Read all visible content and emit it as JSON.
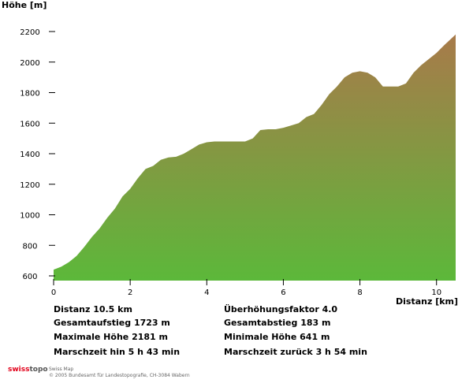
{
  "chart_data": {
    "type": "area",
    "ylabel": "Höhe [m]",
    "xlabel": "Distanz [km]",
    "xlim": [
      0,
      10.5
    ],
    "ylim": [
      600,
      2200
    ],
    "xticks": [
      0,
      2,
      4,
      6,
      8,
      10
    ],
    "yticks": [
      600,
      800,
      1000,
      1200,
      1400,
      1600,
      1800,
      2000,
      2200
    ],
    "fill_top_color": "#a87a4a",
    "fill_bottom_color": "#5cb83a",
    "x": [
      0,
      0.2,
      0.4,
      0.6,
      0.8,
      1.0,
      1.2,
      1.4,
      1.6,
      1.8,
      2.0,
      2.2,
      2.4,
      2.6,
      2.8,
      3.0,
      3.2,
      3.4,
      3.6,
      3.8,
      4.0,
      4.2,
      4.4,
      4.6,
      4.8,
      5.0,
      5.2,
      5.4,
      5.6,
      5.8,
      6.0,
      6.2,
      6.4,
      6.6,
      6.8,
      7.0,
      7.2,
      7.4,
      7.6,
      7.8,
      8.0,
      8.2,
      8.4,
      8.6,
      8.8,
      9.0,
      9.2,
      9.4,
      9.6,
      9.8,
      10.0,
      10.2,
      10.5
    ],
    "y": [
      641,
      660,
      690,
      730,
      790,
      855,
      910,
      980,
      1040,
      1120,
      1170,
      1240,
      1300,
      1320,
      1360,
      1375,
      1380,
      1400,
      1430,
      1460,
      1475,
      1480,
      1480,
      1480,
      1480,
      1480,
      1500,
      1555,
      1560,
      1560,
      1570,
      1585,
      1600,
      1640,
      1660,
      1720,
      1790,
      1840,
      1900,
      1930,
      1940,
      1930,
      1900,
      1840,
      1840,
      1840,
      1860,
      1930,
      1980,
      2020,
      2060,
      2110,
      2181
    ]
  },
  "stats": {
    "distanz": "Distanz 10.5 km",
    "aufstieg": "Gesamtaufstieg  1723 m",
    "max_hoehe": "Maximale Höhe  2181 m",
    "zeit_hin": "Marschzeit hin  5 h 43 min",
    "faktor": "Überhöhungsfaktor 4.0",
    "abstieg": "Gesamtabstieg  183 m",
    "min_hoehe": "Minimale Höhe  641 m",
    "zeit_zurueck": "Marschzeit zurück  3 h 54 min"
  },
  "footer": {
    "logo_part1": "swiss",
    "logo_part2": "topo",
    "line1": "Swiss Map",
    "line2": "© 2005 Bundesamt für Landestopografie, CH-3084 Wabern"
  }
}
